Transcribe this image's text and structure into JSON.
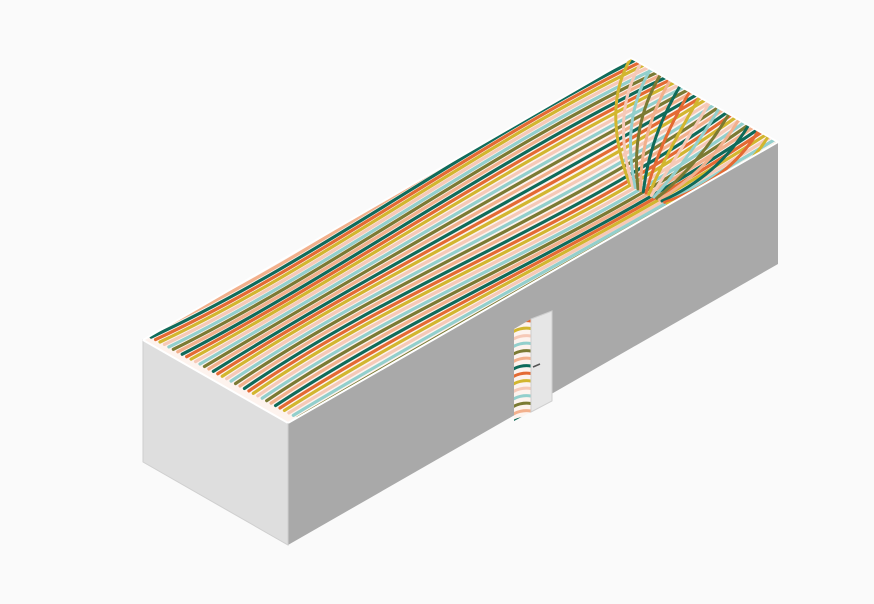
{
  "illustration": {
    "subject": "isometric-room-with-striped-wall-mural",
    "colors": {
      "background": "#fafafa",
      "wall_left_outer": "#dedede",
      "wall_right_outer": "#a9a9a9",
      "wall_top_edge": "#ffffff",
      "edge_line": "#cfcfcf",
      "door_leaf": "#e6e6e6",
      "stripe_palette": [
        "#0f6b5a",
        "#e46a33",
        "#d2b62f",
        "#f6c9b7",
        "#93cfcc",
        "#7b7a33",
        "#f2b08c"
      ]
    },
    "elements": [
      "room-box",
      "mural-stripes",
      "doorway",
      "open-door-leaf"
    ]
  }
}
